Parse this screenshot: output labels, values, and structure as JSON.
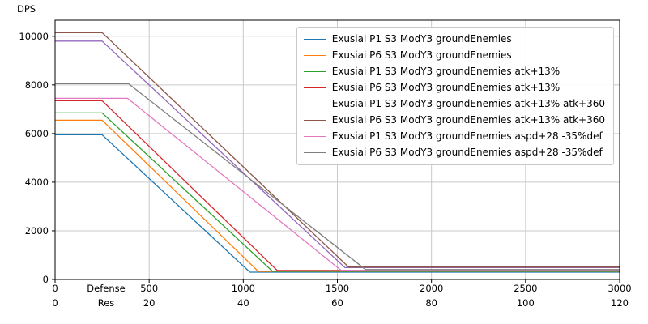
{
  "chart_data": {
    "type": "line",
    "title": "",
    "ylabel": "DPS",
    "xlabel_line1": "Defense",
    "xlabel_line2": "Res",
    "grid": true,
    "legend_position": "upper right",
    "colors": {
      "grid": "#c9c9c9",
      "spine": "#000000",
      "background": "#ffffff"
    },
    "x_axis": {
      "range": [
        0,
        3000
      ],
      "defense_ticks": [
        0,
        500,
        1000,
        1500,
        2000,
        2500,
        3000
      ],
      "res_ticks": [
        0,
        20,
        40,
        60,
        80,
        100,
        120
      ]
    },
    "y_axis": {
      "range": [
        0,
        10660
      ],
      "ticks": [
        0,
        2000,
        4000,
        6000,
        8000,
        10000
      ]
    },
    "series": [
      {
        "name": "Exusiai P1 S3 ModY3 groundEnemies",
        "color": "#1f77b4",
        "points": [
          [
            0,
            5950
          ],
          [
            250,
            5950
          ],
          [
            1035,
            300
          ],
          [
            3000,
            300
          ]
        ]
      },
      {
        "name": "Exusiai P6 S3 ModY3 groundEnemies",
        "color": "#ff7f0e",
        "points": [
          [
            0,
            6550
          ],
          [
            250,
            6550
          ],
          [
            1080,
            330
          ],
          [
            3000,
            330
          ]
        ]
      },
      {
        "name": "Exusiai P1 S3 ModY3 groundEnemies atk+13%",
        "color": "#2ca02c",
        "points": [
          [
            0,
            6850
          ],
          [
            250,
            6850
          ],
          [
            1155,
            340
          ],
          [
            3000,
            340
          ]
        ]
      },
      {
        "name": "Exusiai P6 S3 ModY3 groundEnemies atk+13%",
        "color": "#d62728",
        "points": [
          [
            0,
            7350
          ],
          [
            250,
            7350
          ],
          [
            1180,
            370
          ],
          [
            3000,
            370
          ]
        ]
      },
      {
        "name": "Exusiai P1 S3 ModY3 groundEnemies atk+13% atk+360",
        "color": "#9467bd",
        "points": [
          [
            0,
            9800
          ],
          [
            250,
            9800
          ],
          [
            1540,
            490
          ],
          [
            3000,
            490
          ]
        ]
      },
      {
        "name": "Exusiai P6 S3 ModY3 groundEnemies atk+13% atk+360",
        "color": "#8c564b",
        "points": [
          [
            0,
            10150
          ],
          [
            250,
            10150
          ],
          [
            1560,
            510
          ],
          [
            3000,
            510
          ]
        ]
      },
      {
        "name": "Exusiai P1 S3 ModY3 groundEnemies aspd+28 -35%def",
        "color": "#e377c2",
        "points": [
          [
            0,
            7450
          ],
          [
            385,
            7450
          ],
          [
            1520,
            375
          ],
          [
            3000,
            375
          ]
        ]
      },
      {
        "name": "Exusiai P6 S3 ModY3 groundEnemies aspd+28 -35%def",
        "color": "#7f7f7f",
        "points": [
          [
            0,
            8050
          ],
          [
            390,
            8050
          ],
          [
            1650,
            405
          ],
          [
            3000,
            405
          ]
        ]
      }
    ]
  }
}
